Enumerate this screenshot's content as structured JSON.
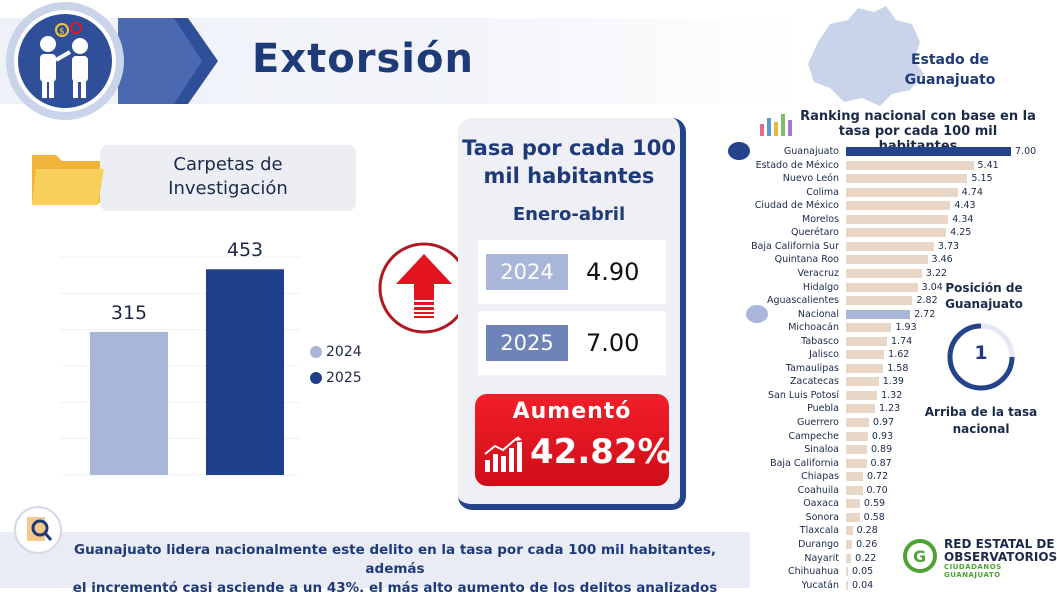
{
  "header": {
    "title": "Extorsión"
  },
  "state": {
    "label_line1": "Estado de",
    "label_line2": "Guanajuato"
  },
  "carpetas": {
    "label_line1": "Carpetas de",
    "label_line2": "Investigación"
  },
  "chart_data": [
    {
      "type": "bar",
      "title": "Carpetas de Investigación",
      "categories": [
        "2024",
        "2025"
      ],
      "values": [
        315,
        453
      ],
      "colors": [
        "#a9b6d9",
        "#1f3f8a"
      ],
      "legend": [
        "2024",
        "2025"
      ],
      "legend_position": "right",
      "grid": true
    },
    {
      "type": "bar",
      "orientation": "horizontal",
      "title": "Ranking nacional con base en la tasa por cada 100 mil habitantes",
      "categories": [
        "Guanajuato",
        "Estado de México",
        "Nuevo León",
        "Colima",
        "Ciudad de México",
        "Morelos",
        "Querétaro",
        "Baja California Sur",
        "Quintana Roo",
        "Veracruz",
        "Hidalgo",
        "Aguascalientes",
        "Nacional",
        "Michoacán",
        "Tabasco",
        "Jalisco",
        "Tamaulipas",
        "Zacatecas",
        "San Luis Potosí",
        "Puebla",
        "Guerrero",
        "Campeche",
        "Sinaloa",
        "Baja California",
        "Chiapas",
        "Coahuila",
        "Oaxaca",
        "Sonora",
        "Tlaxcala",
        "Durango",
        "Nayarit",
        "Chihuahua",
        "Yucatán"
      ],
      "values": [
        7.0,
        5.41,
        5.15,
        4.74,
        4.43,
        4.34,
        4.25,
        3.73,
        3.46,
        3.22,
        3.04,
        2.82,
        2.72,
        1.93,
        1.74,
        1.62,
        1.58,
        1.39,
        1.32,
        1.23,
        0.97,
        0.93,
        0.89,
        0.87,
        0.72,
        0.7,
        0.59,
        0.58,
        0.28,
        0.26,
        0.22,
        0.05,
        0.04
      ],
      "value_labels": [
        "7.00",
        "5.41",
        "5.15",
        "4.74",
        "4.43",
        "4.34",
        "4.25",
        "3.73",
        "3.46",
        "3.22",
        "3.04",
        "2.82",
        "2.72",
        "1.93",
        "1.74",
        "1.62",
        "1.58",
        "1.39",
        "1.32",
        "1.23",
        "0.97",
        "0.93",
        "0.89",
        "0.87",
        "0.72",
        "0.70",
        "0.59",
        "0.58",
        "0.28",
        "0.26",
        "0.22",
        "0.05",
        "0.04"
      ],
      "highlight": {
        "Guanajuato": "#24438a",
        "Nacional": "#a9b6d9"
      },
      "default_color": "#e8d6c6"
    }
  ],
  "tasa": {
    "title_line1": "Tasa por cada 100",
    "title_line2": "mil habitantes",
    "period": "Enero-abril",
    "rows": [
      {
        "year": "2024",
        "value": "4.90",
        "chip_color": "#a9b6d9"
      },
      {
        "year": "2025",
        "value": "7.00",
        "chip_color": "#6e84b8"
      }
    ],
    "change_label": "Aumentó",
    "change_value": "42.82%"
  },
  "ranking": {
    "title_line1": "Ranking nacional con base en la",
    "title_line2": "tasa por cada 100 mil habitantes"
  },
  "position": {
    "label_line1": "Posición de",
    "label_line2": "Guanajuato",
    "number": "1",
    "caption_line1": "Arriba de la tasa",
    "caption_line2": "nacional"
  },
  "organization": {
    "name_line1": "RED ESTATAL DE",
    "name_line2": "OBSERVATORIOS",
    "subtitle": "CIUDADANOS GUANAJUATO"
  },
  "note": {
    "line1": "Guanajuato lidera nacionalmente este delito en la tasa por cada 100 mil habitantes, además",
    "line2": "el incrementó casi asciende a un 43%, el más alto aumento de los delitos analizados"
  },
  "colors": {
    "navy": "#1e3a78",
    "light_blue": "#a9b6d9",
    "red": "#e3141f",
    "beige": "#e8d6c6"
  },
  "icons": [
    "extortion-icon",
    "folder-icon",
    "up-arrow-icon",
    "growth-chart-icon",
    "ranking-icon",
    "search-document-icon",
    "state-map-icon",
    "observatorio-logo-icon"
  ]
}
